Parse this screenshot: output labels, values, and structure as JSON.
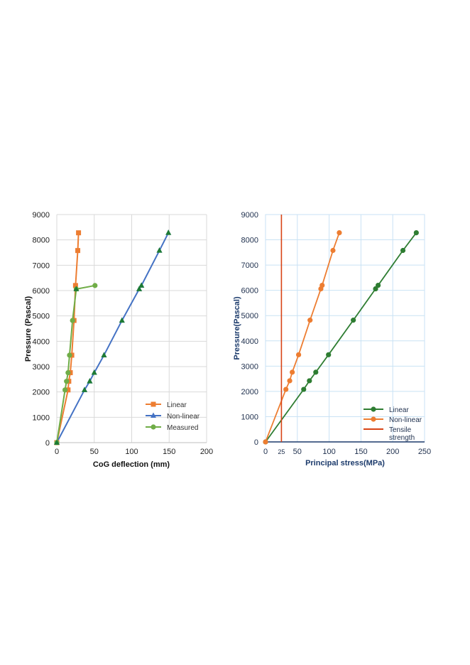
{
  "chart_data": [
    {
      "type": "line",
      "xlabel": "CoG deflection (mm)",
      "ylabel": "Pressure (Pascal)",
      "xlim": [
        0,
        200
      ],
      "ylim": [
        0,
        9000
      ],
      "xticks": [
        "0",
        "50",
        "100",
        "150",
        "200"
      ],
      "yticks": [
        "0",
        "1000",
        "2000",
        "3000",
        "4000",
        "5000",
        "6000",
        "7000",
        "8000",
        "9000"
      ],
      "grid": true,
      "legend_position": "bottom-right",
      "series": [
        {
          "name": "Linear",
          "color": "#ed7d31",
          "marker": "square",
          "x": [
            0,
            15,
            16,
            18,
            20,
            23,
            25,
            28,
            29
          ],
          "y": [
            0,
            2080,
            2420,
            2760,
            3450,
            4820,
            6200,
            7580,
            8280
          ]
        },
        {
          "name": "Non-linear",
          "color": "#4472c4",
          "marker": "triangle",
          "x": [
            0,
            37,
            44,
            50,
            63,
            87,
            110,
            113,
            137,
            149
          ],
          "y": [
            0,
            2080,
            2420,
            2760,
            3450,
            4820,
            6060,
            6200,
            7580,
            8280
          ]
        },
        {
          "name": "Measured",
          "color": "#70ad47",
          "marker": "circle",
          "x": [
            0,
            11,
            13,
            15,
            17,
            21,
            26,
            51
          ],
          "y": [
            0,
            2080,
            2420,
            2760,
            3450,
            4820,
            6060,
            6200
          ]
        }
      ],
      "extra_triangles": {
        "color": "#1e7b34",
        "x": [
          0,
          37,
          44,
          50,
          63,
          87,
          110,
          113,
          137,
          149,
          26
        ],
        "y": [
          0,
          2080,
          2420,
          2760,
          3450,
          4820,
          6060,
          6200,
          7580,
          8280,
          6060
        ]
      }
    },
    {
      "type": "line",
      "xlabel": "Principal stress(MPa)",
      "ylabel": "Pressure(Pascal)",
      "xlim": [
        0,
        250
      ],
      "ylim": [
        0,
        9000
      ],
      "xticks": [
        "0",
        "25",
        "50",
        "100",
        "150",
        "200",
        "250"
      ],
      "xtick_values": [
        0,
        25,
        50,
        100,
        150,
        200,
        250
      ],
      "yticks": [
        "0",
        "1000",
        "2000",
        "3000",
        "4000",
        "5000",
        "6000",
        "7000",
        "8000",
        "9000"
      ],
      "grid": true,
      "legend_position": "bottom-right",
      "series": [
        {
          "name": "Linear",
          "color": "#2e7d32",
          "marker": "circle",
          "x": [
            0,
            60,
            69,
            79,
            99,
            138,
            173,
            177,
            216,
            237
          ],
          "y": [
            0,
            2080,
            2420,
            2760,
            3450,
            4820,
            6060,
            6200,
            7580,
            8280
          ]
        },
        {
          "name": "Non-linear",
          "color": "#ed7d31",
          "marker": "circle",
          "x": [
            0,
            32,
            38,
            42,
            52,
            70,
            87,
            89,
            106,
            116
          ],
          "y": [
            0,
            2080,
            2420,
            2760,
            3450,
            4820,
            6060,
            6200,
            7580,
            8280
          ]
        },
        {
          "name": "Tensile strength",
          "name_lines": [
            "Tensile",
            "strength"
          ],
          "color": "#d84315",
          "marker": "none",
          "x": [
            25,
            25
          ],
          "y": [
            0,
            9000
          ]
        }
      ]
    }
  ]
}
